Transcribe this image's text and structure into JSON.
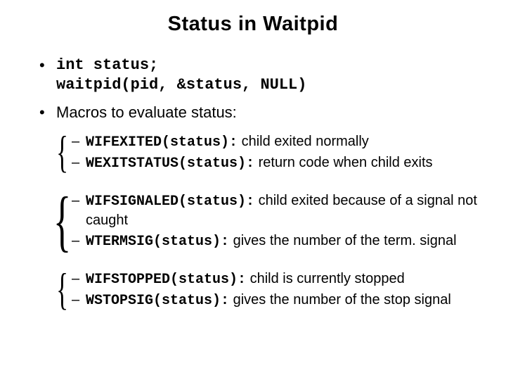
{
  "title": "Status in Waitpid",
  "bullet1_line1": "int status;",
  "bullet1_line2": "waitpid(pid, &status, NULL)",
  "bullet2": "Macros to evaluate status:",
  "group1": {
    "item1_code": "WIFEXITED(status):",
    "item1_text": " child exited normally",
    "item2_code": "WEXITSTATUS(status):",
    "item2_text": " return code when child exits"
  },
  "group2": {
    "item1_code": "WIFSIGNALED(status):",
    "item1_text": " child exited because of a signal not caught",
    "item2_code": "WTERMSIG(status):",
    "item2_text": " gives the number of the term. signal"
  },
  "group3": {
    "item1_code": "WIFSTOPPED(status):",
    "item1_text": " child is currently stopped",
    "item2_code": "WSTOPSIG(status):",
    "item2_text": " gives the number of the stop signal"
  }
}
